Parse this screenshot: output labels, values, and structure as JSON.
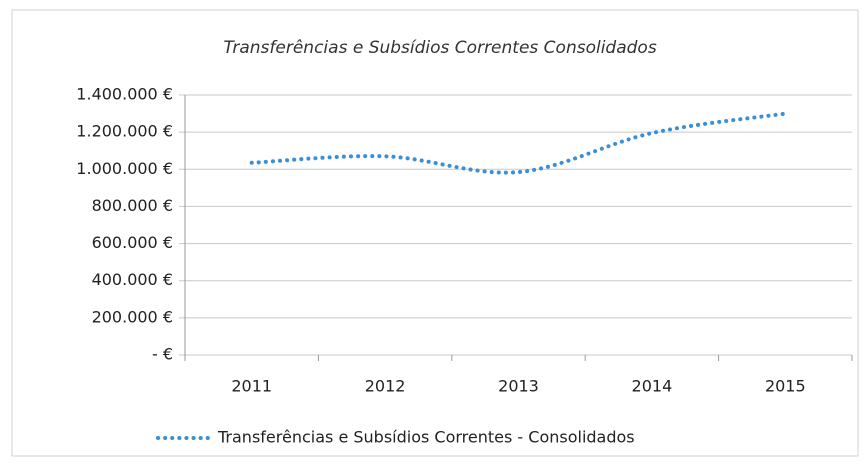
{
  "chart_data": {
    "type": "line",
    "title": "Transferências e Subsídios Correntes Consolidados",
    "categories": [
      "2011",
      "2012",
      "2013",
      "2014",
      "2015"
    ],
    "series": [
      {
        "name": "Transferências e Subsídios Correntes - Consolidados",
        "color": "#3a8fd8",
        "values": [
          1035000,
          1070000,
          985000,
          1195000,
          1300000
        ]
      }
    ],
    "ylim": [
      0,
      1400000
    ],
    "yticks": [
      {
        "value": 0,
        "label": "-   €"
      },
      {
        "value": 200000,
        "label": "200.000 €"
      },
      {
        "value": 400000,
        "label": "400.000 €"
      },
      {
        "value": 600000,
        "label": "600.000 €"
      },
      {
        "value": 800000,
        "label": "800.000 €"
      },
      {
        "value": 1000000,
        "label": "1.000.000 €"
      },
      {
        "value": 1200000,
        "label": "1.200.000 €"
      },
      {
        "value": 1400000,
        "label": "1.400.000 €"
      }
    ],
    "grid": true,
    "legend": "bottom"
  }
}
